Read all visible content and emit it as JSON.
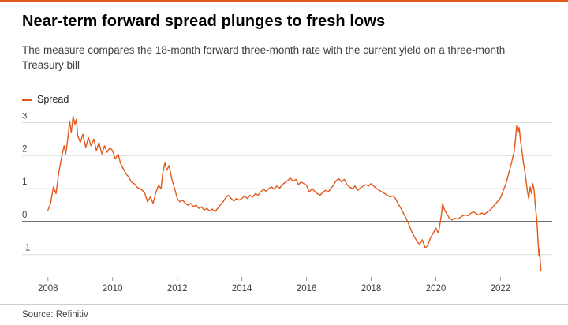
{
  "accent_color": "#E2591C",
  "footer": {
    "source": "Source: Refinitiv"
  },
  "chart_data": {
    "type": "line",
    "title": "Near-term forward spread plunges to fresh lows",
    "subtitle": "The measure compares the 18-month forward three-month rate with the current yield on a three-month Treasury bill",
    "legend": [
      "Spread"
    ],
    "legend_position": "top-left",
    "xlabel": "",
    "ylabel": "",
    "x_ticks": [
      2008,
      2010,
      2012,
      2014,
      2016,
      2018,
      2020,
      2022
    ],
    "y_ticks": [
      -1,
      0,
      1,
      2,
      3
    ],
    "xlim": [
      2007.2,
      2023.6
    ],
    "ylim": [
      -1.63,
      3.3
    ],
    "grid": "horizontal-only",
    "zero_line": "black",
    "series": [
      {
        "name": "Spread",
        "color": "#E2591C",
        "points": [
          [
            2008.0,
            0.35
          ],
          [
            2008.08,
            0.55
          ],
          [
            2008.17,
            1.05
          ],
          [
            2008.25,
            0.85
          ],
          [
            2008.33,
            1.45
          ],
          [
            2008.42,
            1.95
          ],
          [
            2008.5,
            2.3
          ],
          [
            2008.55,
            2.05
          ],
          [
            2008.62,
            2.55
          ],
          [
            2008.67,
            3.05
          ],
          [
            2008.72,
            2.7
          ],
          [
            2008.78,
            3.2
          ],
          [
            2008.83,
            2.95
          ],
          [
            2008.88,
            3.1
          ],
          [
            2008.92,
            2.6
          ],
          [
            2009.0,
            2.4
          ],
          [
            2009.08,
            2.65
          ],
          [
            2009.17,
            2.25
          ],
          [
            2009.25,
            2.55
          ],
          [
            2009.33,
            2.3
          ],
          [
            2009.42,
            2.5
          ],
          [
            2009.5,
            2.15
          ],
          [
            2009.58,
            2.4
          ],
          [
            2009.67,
            2.05
          ],
          [
            2009.75,
            2.3
          ],
          [
            2009.83,
            2.1
          ],
          [
            2009.92,
            2.25
          ],
          [
            2010.0,
            2.15
          ],
          [
            2010.08,
            1.9
          ],
          [
            2010.17,
            2.05
          ],
          [
            2010.25,
            1.75
          ],
          [
            2010.33,
            1.6
          ],
          [
            2010.42,
            1.45
          ],
          [
            2010.5,
            1.35
          ],
          [
            2010.58,
            1.2
          ],
          [
            2010.67,
            1.15
          ],
          [
            2010.75,
            1.05
          ],
          [
            2010.83,
            1.0
          ],
          [
            2010.92,
            0.95
          ],
          [
            2011.0,
            0.85
          ],
          [
            2011.08,
            0.6
          ],
          [
            2011.17,
            0.75
          ],
          [
            2011.25,
            0.55
          ],
          [
            2011.33,
            0.85
          ],
          [
            2011.42,
            1.1
          ],
          [
            2011.5,
            1.0
          ],
          [
            2011.55,
            1.45
          ],
          [
            2011.62,
            1.8
          ],
          [
            2011.67,
            1.55
          ],
          [
            2011.75,
            1.7
          ],
          [
            2011.83,
            1.3
          ],
          [
            2011.92,
            1.0
          ],
          [
            2012.0,
            0.7
          ],
          [
            2012.08,
            0.6
          ],
          [
            2012.17,
            0.65
          ],
          [
            2012.25,
            0.55
          ],
          [
            2012.33,
            0.5
          ],
          [
            2012.42,
            0.55
          ],
          [
            2012.5,
            0.45
          ],
          [
            2012.58,
            0.5
          ],
          [
            2012.67,
            0.4
          ],
          [
            2012.75,
            0.45
          ],
          [
            2012.83,
            0.35
          ],
          [
            2012.92,
            0.4
          ],
          [
            2013.0,
            0.32
          ],
          [
            2013.08,
            0.38
          ],
          [
            2013.17,
            0.3
          ],
          [
            2013.25,
            0.4
          ],
          [
            2013.33,
            0.5
          ],
          [
            2013.42,
            0.6
          ],
          [
            2013.5,
            0.72
          ],
          [
            2013.58,
            0.8
          ],
          [
            2013.67,
            0.7
          ],
          [
            2013.75,
            0.62
          ],
          [
            2013.83,
            0.7
          ],
          [
            2013.92,
            0.65
          ],
          [
            2014.0,
            0.7
          ],
          [
            2014.08,
            0.78
          ],
          [
            2014.17,
            0.7
          ],
          [
            2014.25,
            0.8
          ],
          [
            2014.33,
            0.74
          ],
          [
            2014.42,
            0.85
          ],
          [
            2014.5,
            0.8
          ],
          [
            2014.58,
            0.9
          ],
          [
            2014.67,
            0.98
          ],
          [
            2014.75,
            0.92
          ],
          [
            2014.83,
            1.0
          ],
          [
            2014.92,
            1.05
          ],
          [
            2015.0,
            0.98
          ],
          [
            2015.08,
            1.08
          ],
          [
            2015.17,
            1.02
          ],
          [
            2015.25,
            1.12
          ],
          [
            2015.33,
            1.18
          ],
          [
            2015.42,
            1.25
          ],
          [
            2015.5,
            1.32
          ],
          [
            2015.58,
            1.22
          ],
          [
            2015.67,
            1.28
          ],
          [
            2015.75,
            1.12
          ],
          [
            2015.83,
            1.2
          ],
          [
            2015.92,
            1.15
          ],
          [
            2016.0,
            1.1
          ],
          [
            2016.08,
            0.9
          ],
          [
            2016.17,
            1.0
          ],
          [
            2016.25,
            0.92
          ],
          [
            2016.33,
            0.85
          ],
          [
            2016.42,
            0.8
          ],
          [
            2016.5,
            0.88
          ],
          [
            2016.58,
            0.95
          ],
          [
            2016.67,
            0.9
          ],
          [
            2016.75,
            1.0
          ],
          [
            2016.83,
            1.1
          ],
          [
            2016.92,
            1.25
          ],
          [
            2017.0,
            1.3
          ],
          [
            2017.08,
            1.2
          ],
          [
            2017.17,
            1.28
          ],
          [
            2017.25,
            1.12
          ],
          [
            2017.33,
            1.05
          ],
          [
            2017.42,
            1.0
          ],
          [
            2017.5,
            1.08
          ],
          [
            2017.58,
            0.95
          ],
          [
            2017.67,
            1.02
          ],
          [
            2017.75,
            1.08
          ],
          [
            2017.83,
            1.12
          ],
          [
            2017.92,
            1.08
          ],
          [
            2018.0,
            1.15
          ],
          [
            2018.08,
            1.08
          ],
          [
            2018.17,
            1.0
          ],
          [
            2018.25,
            0.95
          ],
          [
            2018.33,
            0.9
          ],
          [
            2018.42,
            0.85
          ],
          [
            2018.5,
            0.8
          ],
          [
            2018.58,
            0.75
          ],
          [
            2018.67,
            0.78
          ],
          [
            2018.75,
            0.7
          ],
          [
            2018.83,
            0.55
          ],
          [
            2018.92,
            0.4
          ],
          [
            2019.0,
            0.25
          ],
          [
            2019.08,
            0.1
          ],
          [
            2019.17,
            -0.1
          ],
          [
            2019.25,
            -0.3
          ],
          [
            2019.33,
            -0.45
          ],
          [
            2019.42,
            -0.6
          ],
          [
            2019.5,
            -0.7
          ],
          [
            2019.58,
            -0.55
          ],
          [
            2019.67,
            -0.8
          ],
          [
            2019.75,
            -0.72
          ],
          [
            2019.83,
            -0.5
          ],
          [
            2019.92,
            -0.35
          ],
          [
            2020.0,
            -0.2
          ],
          [
            2020.08,
            -0.35
          ],
          [
            2020.17,
            0.2
          ],
          [
            2020.21,
            0.55
          ],
          [
            2020.25,
            0.4
          ],
          [
            2020.33,
            0.25
          ],
          [
            2020.42,
            0.1
          ],
          [
            2020.5,
            0.05
          ],
          [
            2020.58,
            0.1
          ],
          [
            2020.67,
            0.08
          ],
          [
            2020.75,
            0.12
          ],
          [
            2020.83,
            0.18
          ],
          [
            2020.92,
            0.2
          ],
          [
            2021.0,
            0.18
          ],
          [
            2021.08,
            0.25
          ],
          [
            2021.17,
            0.3
          ],
          [
            2021.25,
            0.24
          ],
          [
            2021.33,
            0.2
          ],
          [
            2021.42,
            0.26
          ],
          [
            2021.5,
            0.22
          ],
          [
            2021.58,
            0.28
          ],
          [
            2021.67,
            0.34
          ],
          [
            2021.75,
            0.42
          ],
          [
            2021.83,
            0.52
          ],
          [
            2021.92,
            0.62
          ],
          [
            2022.0,
            0.72
          ],
          [
            2022.08,
            0.92
          ],
          [
            2022.17,
            1.15
          ],
          [
            2022.25,
            1.45
          ],
          [
            2022.33,
            1.75
          ],
          [
            2022.42,
            2.1
          ],
          [
            2022.46,
            2.45
          ],
          [
            2022.5,
            2.9
          ],
          [
            2022.54,
            2.7
          ],
          [
            2022.58,
            2.85
          ],
          [
            2022.62,
            2.45
          ],
          [
            2022.67,
            2.1
          ],
          [
            2022.71,
            1.8
          ],
          [
            2022.75,
            1.55
          ],
          [
            2022.79,
            1.25
          ],
          [
            2022.83,
            0.95
          ],
          [
            2022.87,
            0.7
          ],
          [
            2022.92,
            1.05
          ],
          [
            2022.96,
            0.85
          ],
          [
            2023.0,
            1.15
          ],
          [
            2023.04,
            0.95
          ],
          [
            2023.08,
            0.45
          ],
          [
            2023.12,
            0.1
          ],
          [
            2023.15,
            -0.4
          ],
          [
            2023.17,
            -0.75
          ],
          [
            2023.19,
            -1.05
          ],
          [
            2023.21,
            -0.85
          ],
          [
            2023.23,
            -1.2
          ],
          [
            2023.25,
            -1.5
          ]
        ]
      }
    ]
  }
}
